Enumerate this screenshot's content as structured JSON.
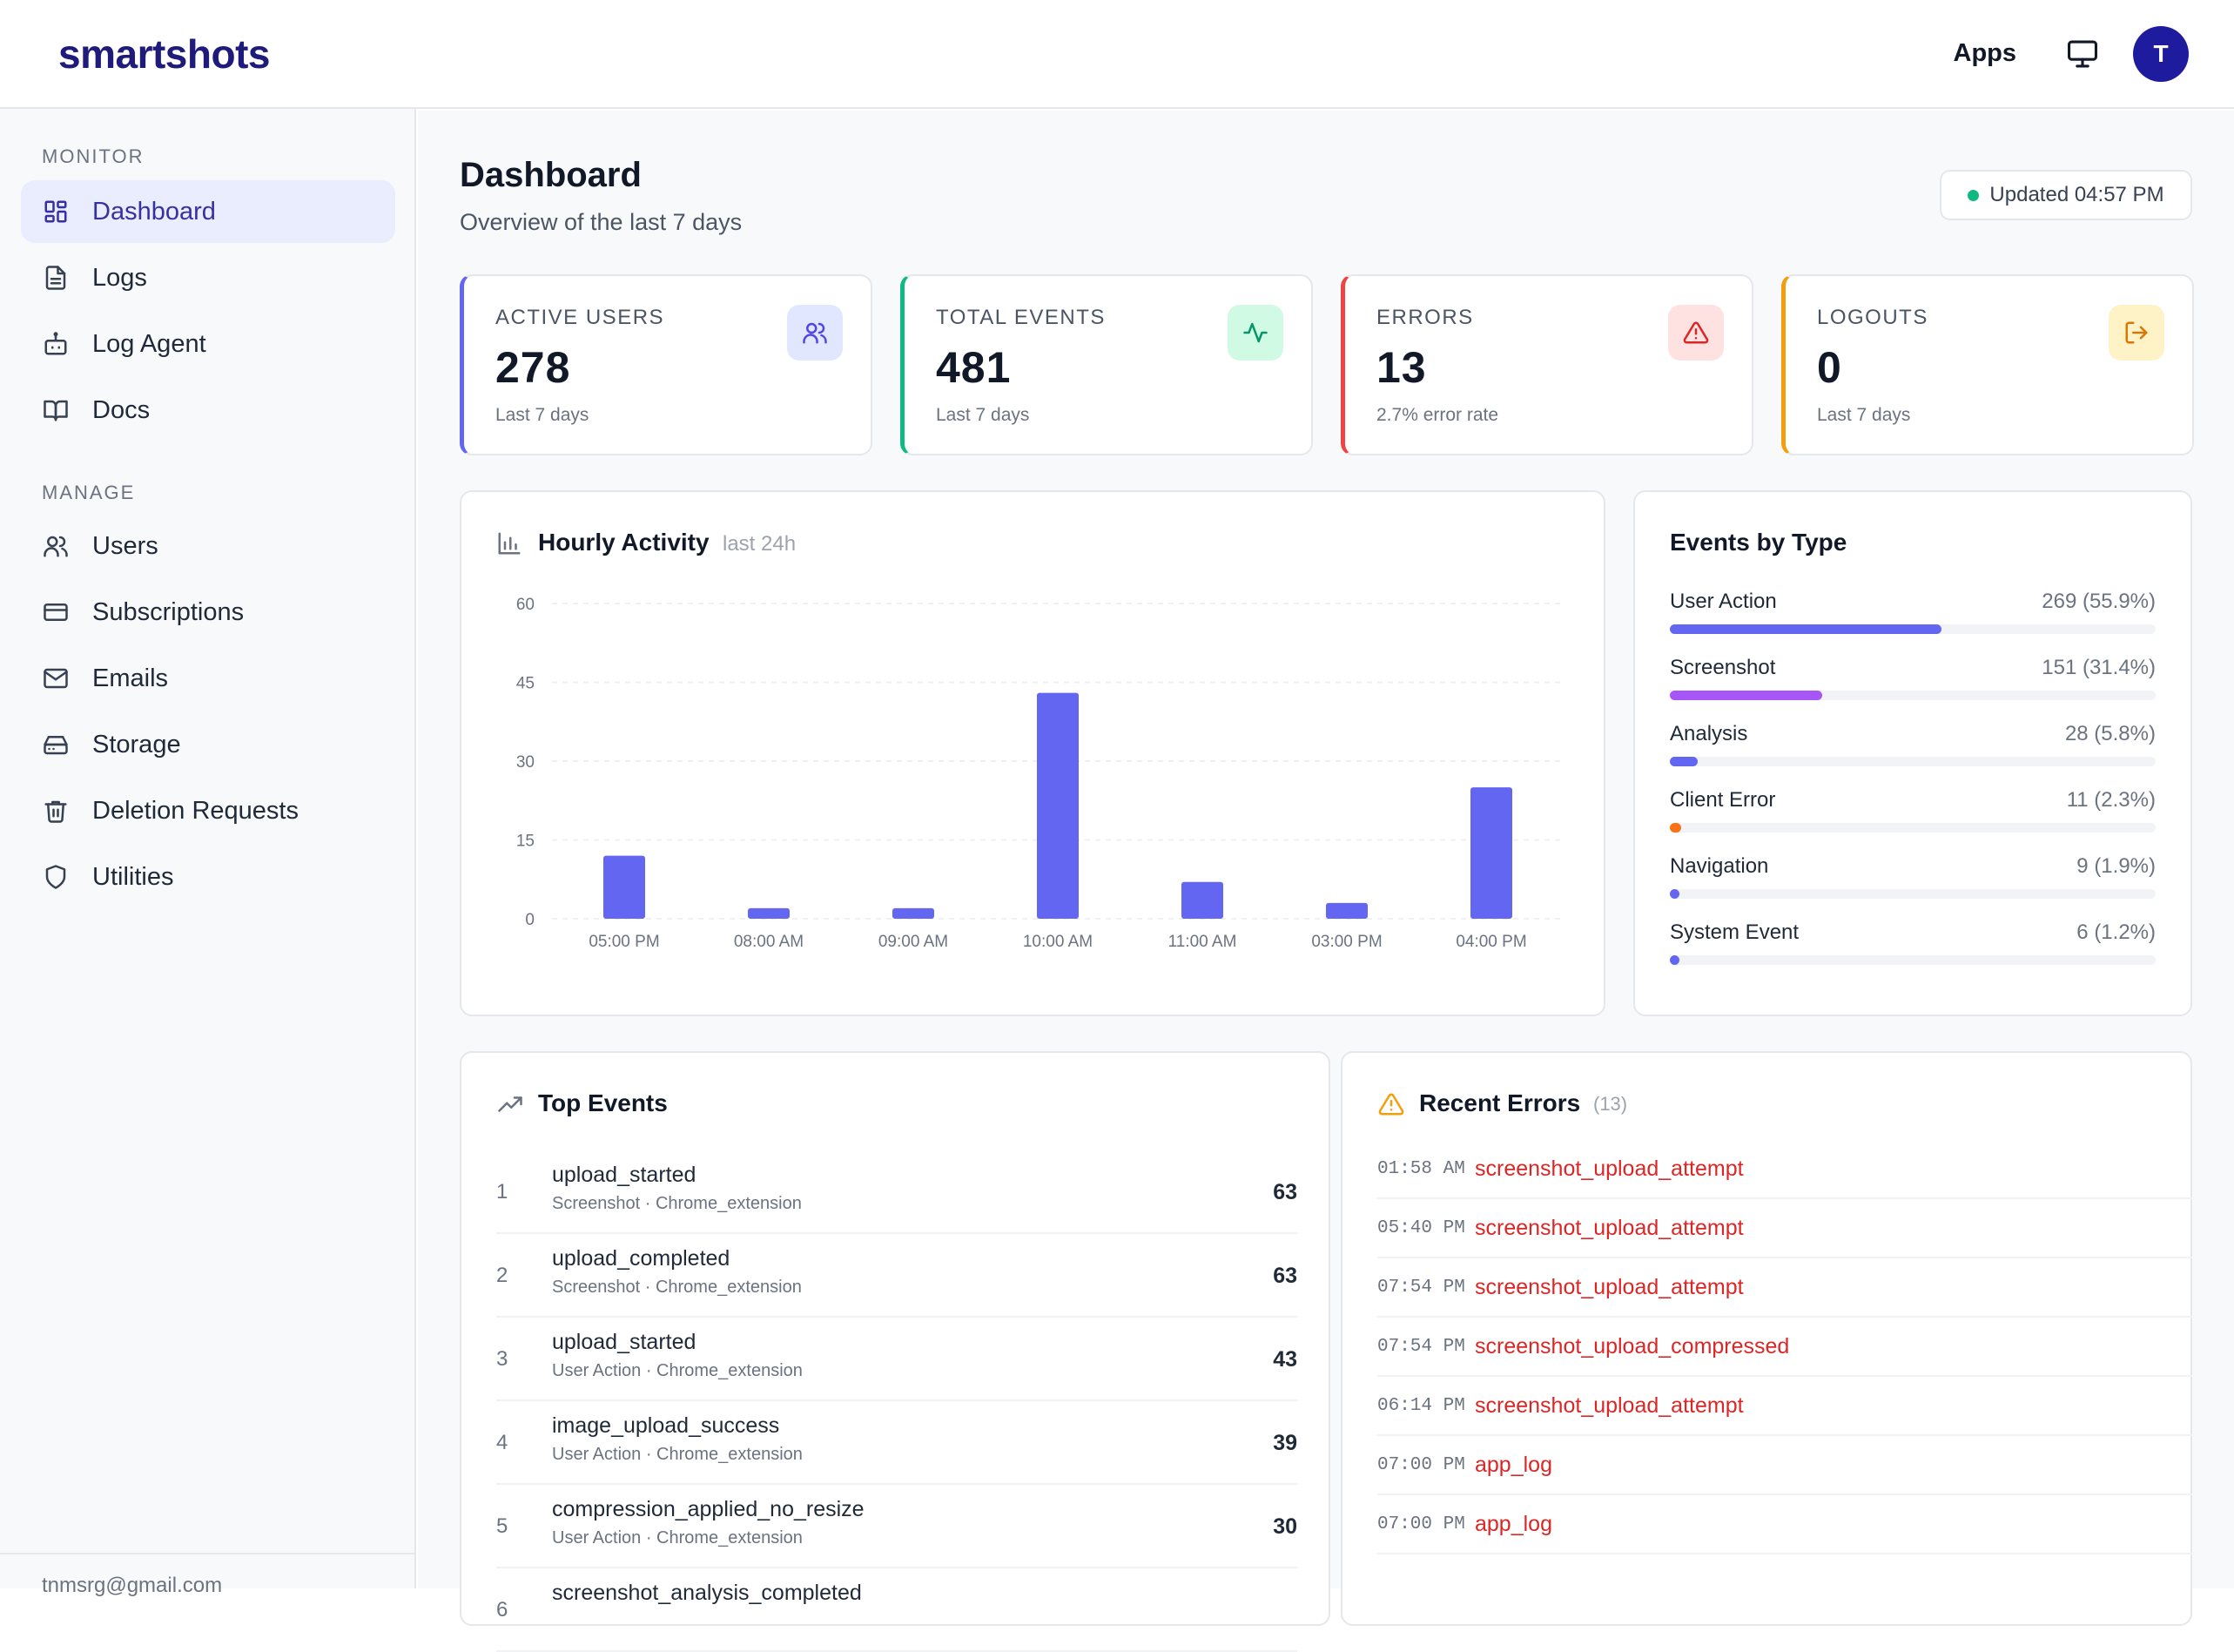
{
  "header": {
    "brand": "smartshots",
    "apps_label": "Apps",
    "avatar_initial": "T"
  },
  "sidebar": {
    "monitor_label": "MONITOR",
    "manage_label": "MANAGE",
    "monitor_items": [
      {
        "label": "Dashboard",
        "icon": "dashboard-icon"
      },
      {
        "label": "Logs",
        "icon": "file-text-icon"
      },
      {
        "label": "Log Agent",
        "icon": "bot-icon"
      },
      {
        "label": "Docs",
        "icon": "book-open-icon"
      }
    ],
    "manage_items": [
      {
        "label": "Users",
        "icon": "users-icon"
      },
      {
        "label": "Subscriptions",
        "icon": "credit-card-icon"
      },
      {
        "label": "Emails",
        "icon": "mail-icon"
      },
      {
        "label": "Storage",
        "icon": "hard-drive-icon"
      },
      {
        "label": "Deletion Requests",
        "icon": "trash-icon"
      },
      {
        "label": "Utilities",
        "icon": "shield-icon"
      }
    ],
    "footer_email": "tnmsrg@gmail.com"
  },
  "page": {
    "title": "Dashboard",
    "subtitle": "Overview of the last 7 days",
    "updated": "Updated 04:57 PM"
  },
  "stats": [
    {
      "label": "ACTIVE USERS",
      "value": "278",
      "note": "Last 7 days",
      "accent": "#6366f1",
      "icon": "users-icon"
    },
    {
      "label": "TOTAL EVENTS",
      "value": "481",
      "note": "Last 7 days",
      "accent": "#10b981",
      "icon": "activity-icon"
    },
    {
      "label": "ERRORS",
      "value": "13",
      "note": "2.7% error rate",
      "accent": "#ef4444",
      "icon": "alert-triangle-icon"
    },
    {
      "label": "LOGOUTS",
      "value": "0",
      "note": "Last 7 days",
      "accent": "#f59e0b",
      "icon": "log-out-icon"
    }
  ],
  "hourly": {
    "title": "Hourly Activity",
    "subtitle": "last 24h"
  },
  "chart_data": {
    "type": "bar",
    "title": "Hourly Activity",
    "subtitle": "last 24h",
    "categories": [
      "05:00 PM",
      "08:00 AM",
      "09:00 AM",
      "10:00 AM",
      "11:00 AM",
      "03:00 PM",
      "04:00 PM"
    ],
    "values": [
      12,
      2,
      2,
      43,
      7,
      3,
      25
    ],
    "yticks": [
      0,
      15,
      30,
      45,
      60
    ],
    "ylim": [
      0,
      60
    ],
    "color": "#6366f1",
    "grid": true
  },
  "events_by_type": {
    "title": "Events by Type",
    "items": [
      {
        "name": "User Action",
        "count": "269 (55.9%)",
        "fraction": 0.559,
        "color": "#6366f1"
      },
      {
        "name": "Screenshot",
        "count": "151 (31.4%)",
        "fraction": 0.314,
        "color": "#a855f7"
      },
      {
        "name": "Analysis",
        "count": "28 (5.8%)",
        "fraction": 0.058,
        "color": "#6366f1"
      },
      {
        "name": "Client Error",
        "count": "11 (2.3%)",
        "fraction": 0.023,
        "color": "#f97316"
      },
      {
        "name": "Navigation",
        "count": "9 (1.9%)",
        "fraction": 0.019,
        "color": "#6366f1"
      },
      {
        "name": "System Event",
        "count": "6 (1.2%)",
        "fraction": 0.012,
        "color": "#6366f1"
      }
    ]
  },
  "top_events": {
    "title": "Top Events",
    "items": [
      {
        "rank": "1",
        "name": "upload_started",
        "meta": "Screenshot · Chrome_extension",
        "count": "63"
      },
      {
        "rank": "2",
        "name": "upload_completed",
        "meta": "Screenshot · Chrome_extension",
        "count": "63"
      },
      {
        "rank": "3",
        "name": "upload_started",
        "meta": "User Action · Chrome_extension",
        "count": "43"
      },
      {
        "rank": "4",
        "name": "image_upload_success",
        "meta": "User Action · Chrome_extension",
        "count": "39"
      },
      {
        "rank": "5",
        "name": "compression_applied_no_resize",
        "meta": "User Action · Chrome_extension",
        "count": "30"
      },
      {
        "rank": "6",
        "name": "screenshot_analysis_completed",
        "meta": "",
        "count": ""
      }
    ]
  },
  "recent_errors": {
    "title": "Recent Errors",
    "count": "(13)",
    "items": [
      {
        "time": "01:58 AM",
        "name": "screenshot_upload_attempt"
      },
      {
        "time": "05:40 PM",
        "name": "screenshot_upload_attempt"
      },
      {
        "time": "07:54 PM",
        "name": "screenshot_upload_attempt"
      },
      {
        "time": "07:54 PM",
        "name": "screenshot_upload_compressed"
      },
      {
        "time": "06:14 PM",
        "name": "screenshot_upload_attempt"
      },
      {
        "time": "07:00 PM",
        "name": "app_log"
      },
      {
        "time": "07:00 PM",
        "name": "app_log"
      }
    ]
  }
}
